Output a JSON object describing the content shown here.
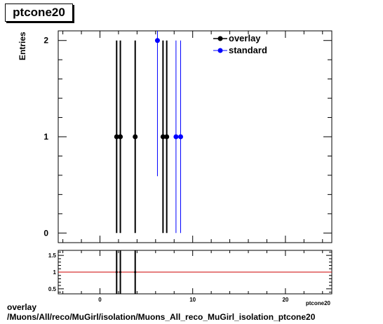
{
  "title": "ptcone20",
  "caption": {
    "line1": "overlay",
    "line2": "/Muons/All/reco/MuGirl/isolation/Muons_All_reco_MuGirl_isolation_ptcone20"
  },
  "colors": {
    "overlay": "#000000",
    "standard": "#0000ff",
    "ratio_line": "#cc0000"
  },
  "chart_data": [
    {
      "type": "scatter",
      "ylabel": "Entries",
      "xlabel": "ptcone20",
      "xlim": [
        -4.5,
        25
      ],
      "ylim": [
        -0.1,
        2.1
      ],
      "x_ticks": [
        0,
        10,
        20
      ],
      "y_ticks": [
        0,
        1,
        2
      ],
      "legend": {
        "position": "top-right",
        "entries": [
          "overlay",
          "standard"
        ]
      },
      "series": [
        {
          "name": "overlay",
          "points": [
            {
              "x": 1.8,
              "y": 1,
              "yerr": 1
            },
            {
              "x": 2.2,
              "y": 1,
              "yerr": 1
            },
            {
              "x": 3.8,
              "y": 1,
              "yerr": 1
            },
            {
              "x": 6.8,
              "y": 1,
              "yerr": 1
            },
            {
              "x": 7.2,
              "y": 1,
              "yerr": 1
            }
          ]
        },
        {
          "name": "standard",
          "points": [
            {
              "x": 6.2,
              "y": 2,
              "yerr": 1.41
            },
            {
              "x": 8.2,
              "y": 1,
              "yerr": 1
            },
            {
              "x": 8.7,
              "y": 1,
              "yerr": 1
            }
          ]
        }
      ]
    },
    {
      "type": "line",
      "xlim": [
        -4.5,
        25
      ],
      "ylim": [
        0.35,
        1.65
      ],
      "x_ticks": [
        0,
        10,
        20
      ],
      "y_ticks": [
        0.5,
        1,
        1.5
      ],
      "reference_line": 1,
      "ratio_points": [
        {
          "x": 1.8,
          "y": 1,
          "yerr": 1
        },
        {
          "x": 2.2,
          "y": 1,
          "yerr": 1
        },
        {
          "x": 3.8,
          "y": 1,
          "yerr": 1
        }
      ]
    }
  ]
}
